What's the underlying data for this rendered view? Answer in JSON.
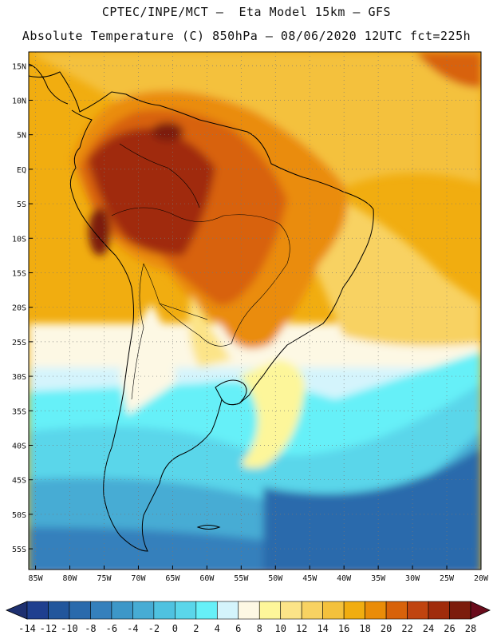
{
  "header": {
    "line1": "CPTEC/INPE/MCT –  Eta Model 15km – GFS",
    "line2": "Absolute Temperature (C) 850hPa – 08/06/2020 12UTC fct=225h"
  },
  "map": {
    "lat_labels": [
      "15N",
      "10N",
      "5N",
      "EQ",
      "5S",
      "10S",
      "15S",
      "20S",
      "25S",
      "30S",
      "35S",
      "40S",
      "45S",
      "50S",
      "55S"
    ],
    "lat_values": [
      15,
      10,
      5,
      0,
      -5,
      -10,
      -15,
      -20,
      -25,
      -30,
      -35,
      -40,
      -45,
      -50,
      -55
    ],
    "lon_labels": [
      "85W",
      "80W",
      "75W",
      "70W",
      "65W",
      "60W",
      "55W",
      "50W",
      "45W",
      "40W",
      "35W",
      "30W",
      "25W",
      "20W"
    ],
    "lon_values": [
      -85,
      -80,
      -75,
      -70,
      -65,
      -60,
      -55,
      -50,
      -45,
      -40,
      -35,
      -30,
      -25,
      -20
    ],
    "lon_range": [
      -86,
      -20
    ],
    "lat_range": [
      -58,
      17
    ]
  },
  "colorbar": {
    "labels": [
      "-14",
      "-12",
      "-10",
      "-8",
      "-6",
      "-4",
      "-2",
      "0",
      "2",
      "4",
      "6",
      "8",
      "10",
      "12",
      "14",
      "16",
      "18",
      "20",
      "22",
      "24",
      "26",
      "28"
    ],
    "colors": [
      "#1f3f8f",
      "#22569c",
      "#2a6aac",
      "#3580bc",
      "#3d97c8",
      "#47acd4",
      "#4fc2e0",
      "#5ad6ea",
      "#66f0f8",
      "#d4f4fc",
      "#fdf8e4",
      "#fdf69a",
      "#fce488",
      "#f8d262",
      "#f4c13c",
      "#f1ad10",
      "#ea8c08",
      "#d8620a",
      "#c04410",
      "#a02c0c",
      "#7c1c0c"
    ],
    "low_color": "#1e3070",
    "high_color": "#6a0c1c"
  }
}
